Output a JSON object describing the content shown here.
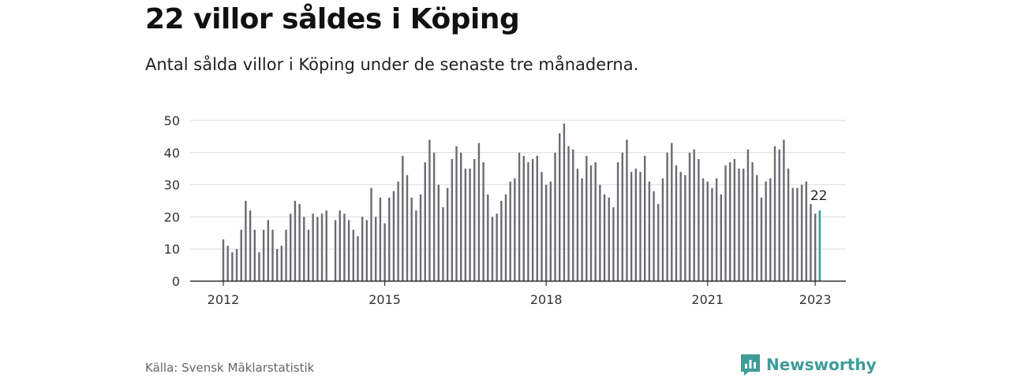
{
  "title": "22 villor såldes i Köping",
  "subtitle": "Antal sålda villor i Köping under de senaste tre månaderna.",
  "source": "Källa: Svensk Mäklarstatistik",
  "brand": {
    "name": "Newsworthy",
    "icon": "newsworthy-logo-icon"
  },
  "colors": {
    "bar": "#6b6b72",
    "highlight": "#2a9d95",
    "grid": "#dddddd",
    "axis": "#333333",
    "brand": "#3f9c97"
  },
  "chart_data": {
    "type": "bar",
    "x_start": "2012-01",
    "x_tick_labels": [
      "2012",
      "2015",
      "2018",
      "2021",
      "2023"
    ],
    "y_ticks": [
      0,
      10,
      20,
      30,
      40,
      50
    ],
    "ylim": [
      0,
      50
    ],
    "grid": true,
    "highlight_label": "22",
    "values": [
      13,
      11,
      9,
      10,
      16,
      25,
      22,
      16,
      9,
      16,
      19,
      16,
      10,
      11,
      16,
      21,
      25,
      24,
      20,
      16,
      21,
      20,
      21,
      22,
      null,
      19,
      22,
      21,
      19,
      16,
      14,
      20,
      19,
      29,
      20,
      26,
      18,
      26,
      28,
      31,
      39,
      33,
      26,
      22,
      27,
      37,
      44,
      40,
      30,
      23,
      29,
      38,
      42,
      40,
      35,
      35,
      38,
      43,
      37,
      27,
      20,
      21,
      25,
      27,
      31,
      32,
      40,
      39,
      37,
      38,
      39,
      34,
      30,
      31,
      40,
      46,
      49,
      42,
      41,
      35,
      32,
      39,
      36,
      37,
      30,
      27,
      26,
      23,
      37,
      40,
      44,
      34,
      35,
      34,
      39,
      31,
      28,
      24,
      32,
      40,
      43,
      36,
      34,
      33,
      40,
      41,
      38,
      32,
      31,
      29,
      32,
      27,
      36,
      37,
      38,
      35,
      35,
      41,
      37,
      33,
      26,
      31,
      32,
      42,
      41,
      44,
      35,
      29,
      29,
      30,
      31,
      24,
      21,
      22
    ]
  }
}
